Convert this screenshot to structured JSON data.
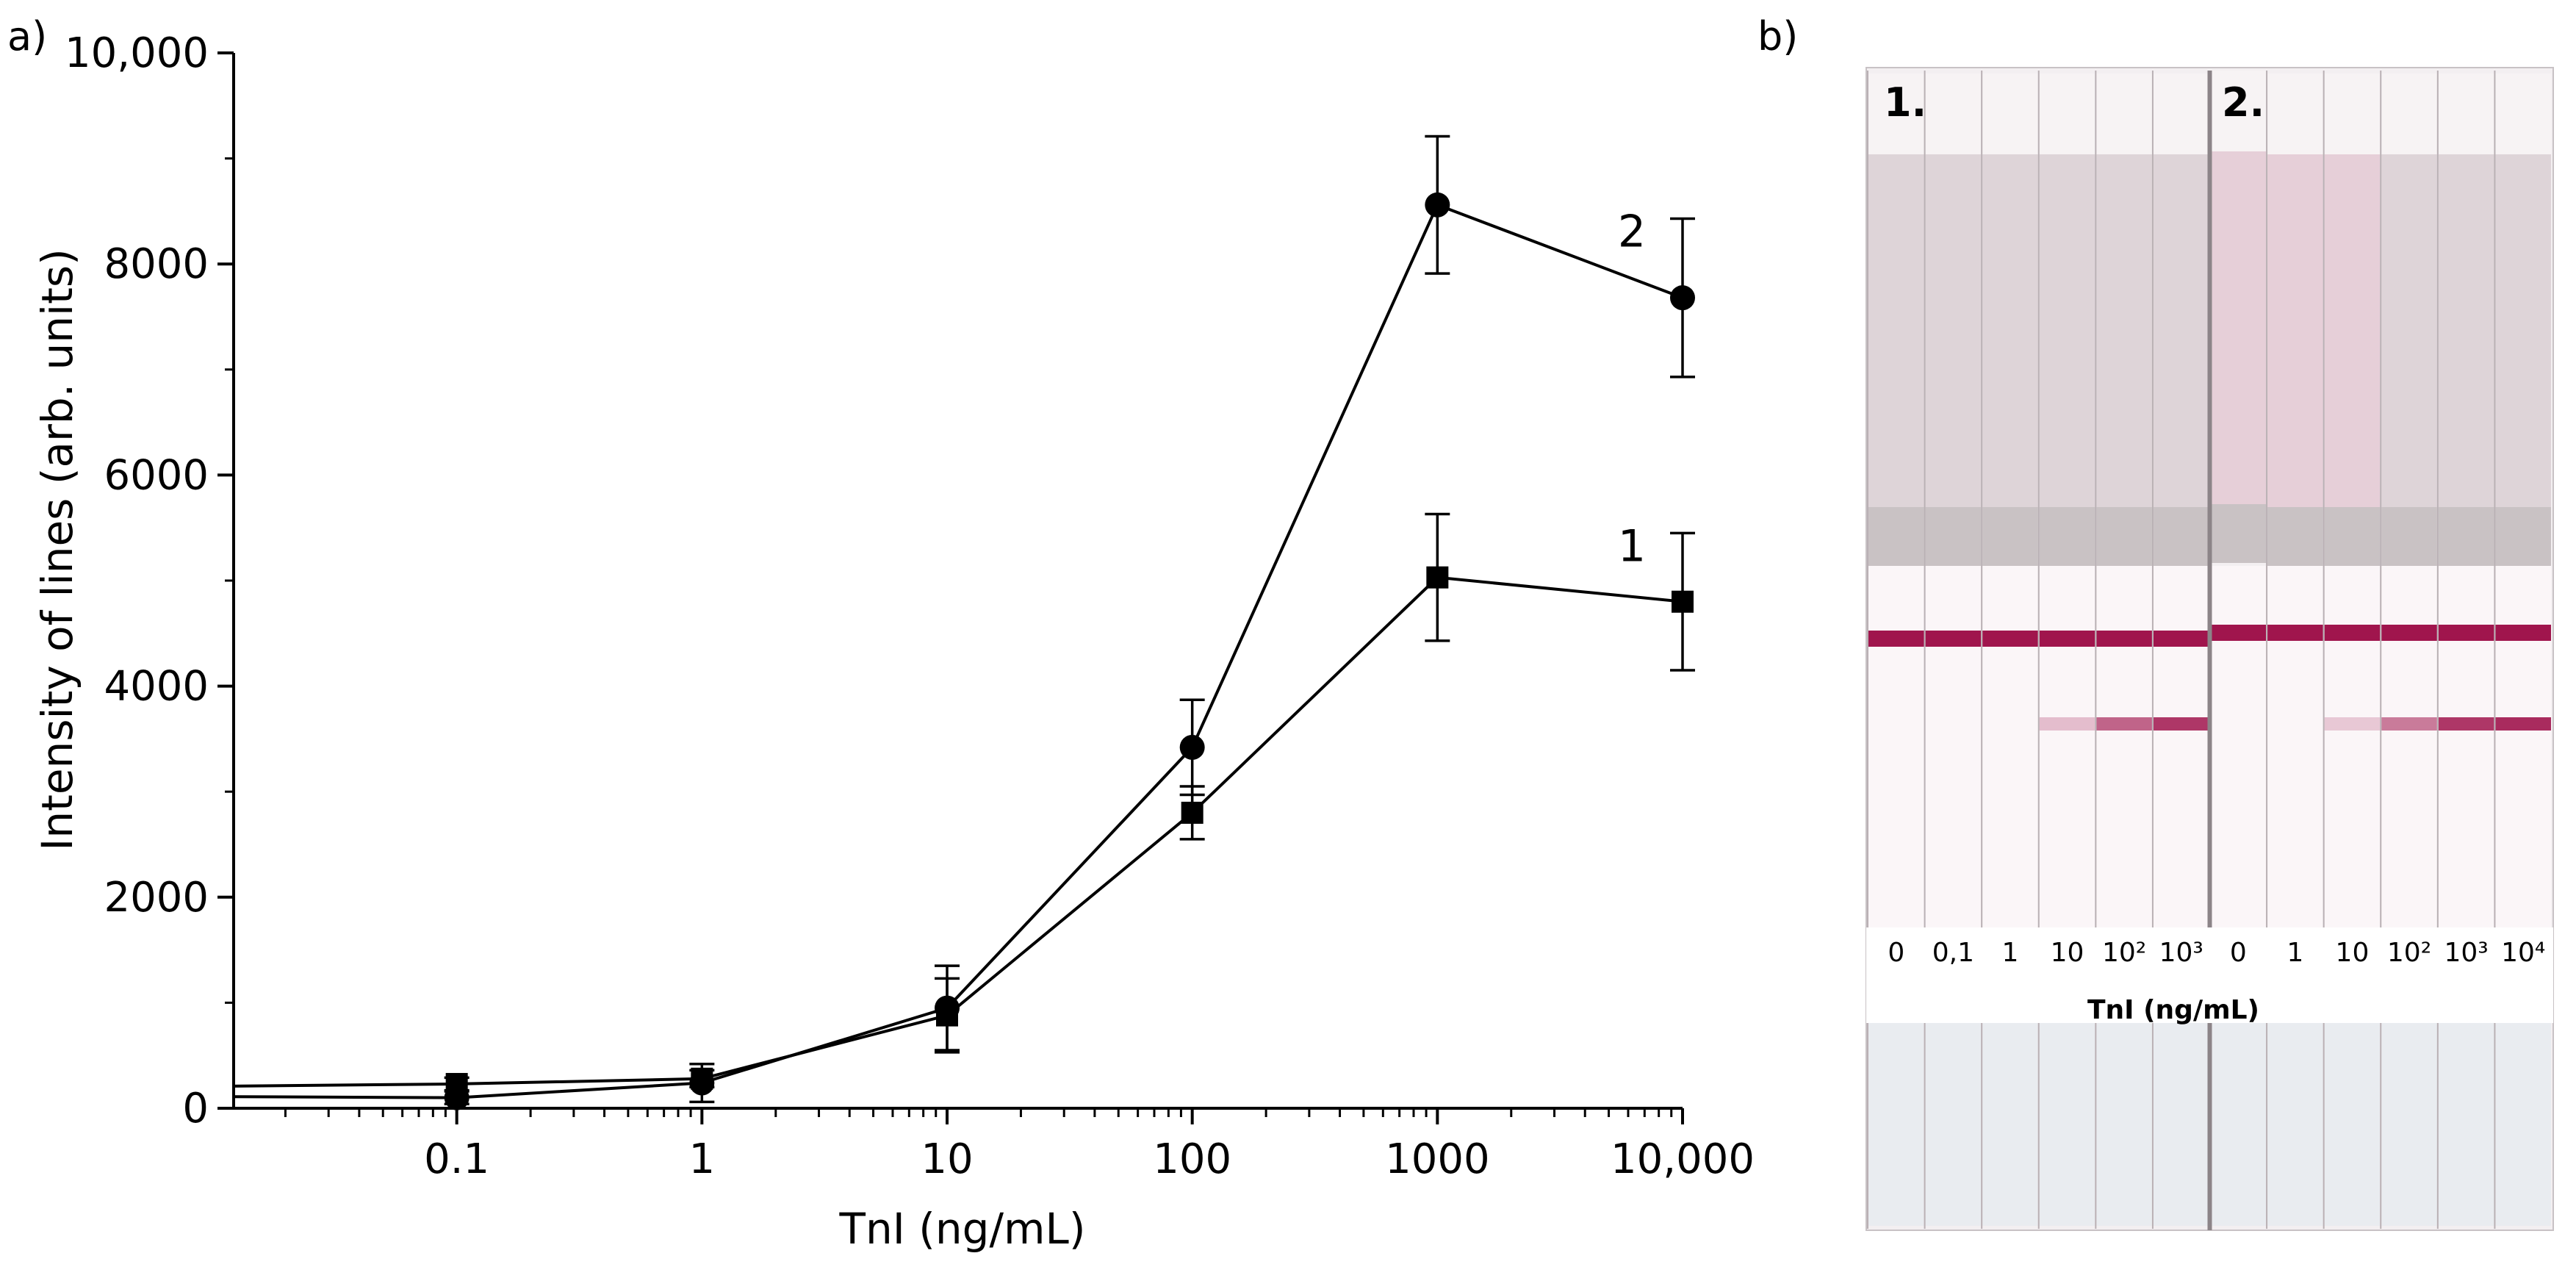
{
  "panel_labels": {
    "a": "a)",
    "b": "b)"
  },
  "chart_data": {
    "type": "line",
    "title": "",
    "xlabel": "TnI (ng/mL)",
    "ylabel": "Intensity of lines (arb. units)",
    "x_scale": "log",
    "xlim": [
      0.0123,
      10000
    ],
    "ylim": [
      0,
      10000
    ],
    "x_ticks": [
      0.1,
      1,
      10,
      100,
      1000,
      10000
    ],
    "x_tick_labels": [
      "0.1",
      "1",
      "10",
      "100",
      "1000",
      "10,000"
    ],
    "y_ticks": [
      0,
      2000,
      4000,
      6000,
      8000,
      10000
    ],
    "y_tick_labels": [
      "0",
      "2000",
      "4000",
      "6000",
      "8000",
      "10,000"
    ],
    "grid": false,
    "series": [
      {
        "name": "1",
        "marker": "square",
        "x": [
          0.1,
          1,
          10,
          100,
          1000,
          10000
        ],
        "values": [
          230,
          280,
          880,
          2800,
          5030,
          4800
        ],
        "error": [
          60,
          80,
          350,
          250,
          600,
          650
        ],
        "leading_value": 210
      },
      {
        "name": "2",
        "marker": "circle",
        "x": [
          0.1,
          1,
          10,
          100,
          1000,
          10000
        ],
        "values": [
          100,
          240,
          950,
          3420,
          8560,
          7680
        ],
        "error": [
          60,
          180,
          400,
          450,
          650,
          750
        ],
        "leading_value": 110
      }
    ]
  },
  "photo": {
    "strip_labels": [
      "1.",
      "2."
    ],
    "concentration_labels": [
      "0",
      "0,1",
      "1",
      "10",
      "10²",
      "10³",
      "0",
      "1",
      "10",
      "10²",
      "10³",
      "10⁴"
    ],
    "axis_caption": "TnI (ng/mL)",
    "test_line_intensity": [
      0,
      0,
      0,
      0.25,
      0.65,
      0.85,
      0,
      0,
      0.2,
      0.55,
      0.85,
      0.9
    ],
    "colors": {
      "membrane": "#fbf6f8",
      "control_line": "#a0154d",
      "pad": "#ded4d8",
      "background": "#ffffff"
    }
  }
}
